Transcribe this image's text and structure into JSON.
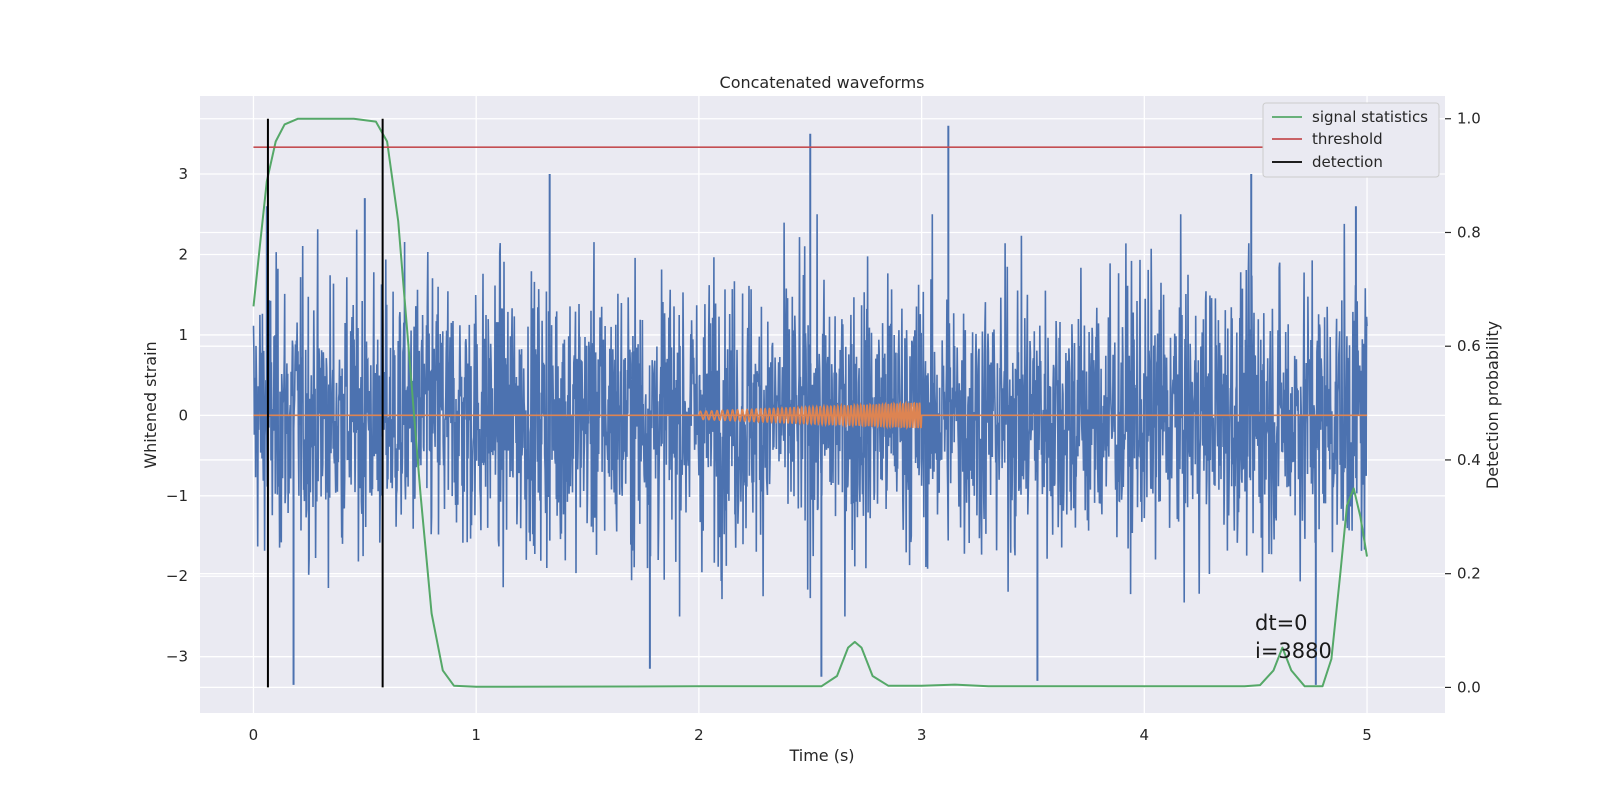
{
  "chart_data": {
    "type": "line",
    "title": "Concatenated waveforms",
    "xlabel": "Time (s)",
    "ylabel_left": "Whitened strain",
    "ylabel_right": "Detection probability",
    "xlim": [
      -0.24,
      5.35
    ],
    "ylim_left": [
      -3.7,
      3.97
    ],
    "ylim_right": [
      -0.045,
      1.04
    ],
    "xticks": [
      0,
      1,
      2,
      3,
      4,
      5
    ],
    "xtick_labels": [
      "0",
      "1",
      "2",
      "3",
      "4",
      "5"
    ],
    "yticks_left": [
      -3,
      -2,
      -1,
      0,
      1,
      2,
      3
    ],
    "ytick_labels_left": [
      "−3",
      "−2",
      "−1",
      "0",
      "1",
      "2",
      "3"
    ],
    "yticks_right": [
      0.0,
      0.2,
      0.4,
      0.6,
      0.8,
      1.0
    ],
    "ytick_labels_right": [
      "0.0",
      "0.2",
      "0.4",
      "0.6",
      "0.8",
      "1.0"
    ],
    "grid": true,
    "legend_position": "upper-right",
    "legend": [
      {
        "label": "signal statistics",
        "color": "#55a868"
      },
      {
        "label": "threshold",
        "color": "#c44e52"
      },
      {
        "label": "detection",
        "color": "#000000"
      }
    ],
    "series": [
      {
        "name": "whitened-strain",
        "axis": "left",
        "color": "#4c72b0",
        "x_range": [
          0,
          5
        ],
        "typical_envelope": [
          -2.0,
          2.0
        ],
        "peak_points": [
          [
            0.18,
            -3.35
          ],
          [
            0.06,
            2.6
          ],
          [
            0.5,
            2.7
          ],
          [
            1.33,
            3.0
          ],
          [
            1.78,
            -3.15
          ],
          [
            2.5,
            3.5
          ],
          [
            2.55,
            -3.25
          ],
          [
            3.12,
            3.6
          ],
          [
            3.52,
            -3.3
          ],
          [
            4.48,
            3.0
          ],
          [
            4.77,
            -3.35
          ],
          [
            4.95,
            2.6
          ]
        ]
      },
      {
        "name": "injected-signal",
        "axis": "left",
        "color": "#dd8452",
        "x": [
          0,
          2,
          3,
          5
        ],
        "y": [
          0,
          0,
          0,
          0
        ],
        "chirp_range": [
          2.0,
          3.0
        ],
        "chirp_amplitude": [
          0.05,
          0.16
        ]
      },
      {
        "name": "signal statistics",
        "axis": "right",
        "color": "#55a868",
        "x": [
          0.0,
          0.03,
          0.06,
          0.1,
          0.14,
          0.2,
          0.3,
          0.45,
          0.55,
          0.6,
          0.65,
          0.7,
          0.75,
          0.8,
          0.85,
          0.9,
          1.0,
          2.0,
          2.55,
          2.62,
          2.67,
          2.7,
          2.73,
          2.78,
          2.85,
          3.0,
          3.15,
          3.3,
          4.0,
          4.45,
          4.52,
          4.58,
          4.62,
          4.66,
          4.72,
          4.8,
          4.84,
          4.88,
          4.91,
          4.94,
          4.97,
          5.0
        ],
        "y": [
          0.67,
          0.78,
          0.89,
          0.96,
          0.99,
          1.0,
          1.0,
          1.0,
          0.995,
          0.96,
          0.82,
          0.58,
          0.34,
          0.13,
          0.03,
          0.003,
          0.001,
          0.002,
          0.002,
          0.02,
          0.07,
          0.08,
          0.07,
          0.02,
          0.003,
          0.003,
          0.005,
          0.002,
          0.002,
          0.002,
          0.004,
          0.03,
          0.07,
          0.03,
          0.002,
          0.002,
          0.05,
          0.2,
          0.32,
          0.35,
          0.3,
          0.23
        ]
      },
      {
        "name": "threshold",
        "axis": "right",
        "color": "#c44e52",
        "x": [
          0,
          5
        ],
        "y": [
          0.95,
          0.95
        ]
      },
      {
        "name": "detection",
        "axis": "right",
        "color": "#000000",
        "x": [
          0.065,
          0.58
        ],
        "ymin": 0.0,
        "ymax": 1.0
      }
    ],
    "annotations": [
      "dt=0",
      "i=3880"
    ]
  }
}
